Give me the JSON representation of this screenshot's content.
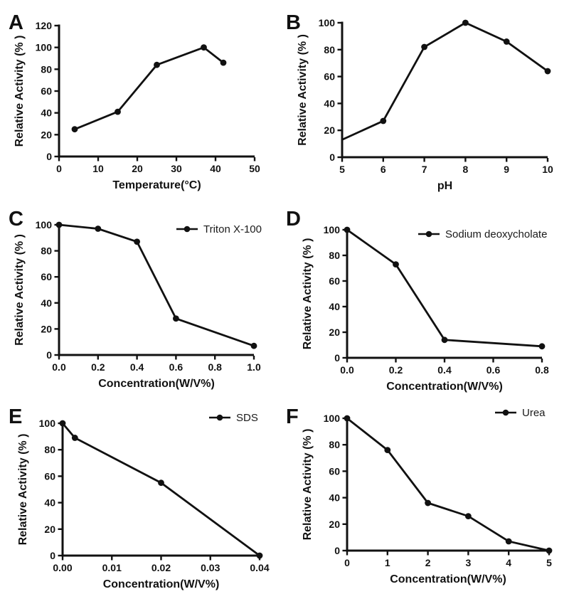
{
  "figure": {
    "background": "#ffffff",
    "line_color": "#111111"
  },
  "chart_data": [
    {
      "id": "A",
      "type": "line",
      "panel_label": "A",
      "xlabel": "Temperature(°C)",
      "ylabel": "Relative Activity (% )",
      "legend": null,
      "xlim": [
        0,
        50
      ],
      "ylim": [
        0,
        120
      ],
      "xticks": [
        0,
        10,
        20,
        30,
        40,
        50
      ],
      "xtick_labels": [
        "0",
        "10",
        "20",
        "30",
        "40",
        "50"
      ],
      "yticks": [
        0,
        20,
        40,
        60,
        80,
        100,
        120
      ],
      "ytick_labels": [
        "0",
        "20",
        "40",
        "60",
        "80",
        "100",
        "120"
      ],
      "x": [
        4,
        15,
        25,
        37,
        42
      ],
      "y": [
        25,
        41,
        84,
        100,
        86
      ],
      "marker_hidden": []
    },
    {
      "id": "B",
      "type": "line",
      "panel_label": "B",
      "xlabel": "pH",
      "ylabel": "Relative Activity (% )",
      "legend": null,
      "xlim": [
        5,
        10
      ],
      "ylim": [
        0,
        100
      ],
      "xticks": [
        5,
        6,
        7,
        8,
        9,
        10
      ],
      "xtick_labels": [
        "5",
        "6",
        "7",
        "8",
        "9",
        "10"
      ],
      "yticks": [
        0,
        20,
        40,
        60,
        80,
        100
      ],
      "ytick_labels": [
        "0",
        "20",
        "40",
        "60",
        "80",
        "100"
      ],
      "x": [
        5,
        6,
        7,
        8,
        9,
        10
      ],
      "y": [
        13,
        27,
        82,
        100,
        86,
        64
      ],
      "marker_hidden": [
        0
      ]
    },
    {
      "id": "C",
      "type": "line",
      "panel_label": "C",
      "xlabel": "Concentration(W/V%)",
      "ylabel": "Relative Activity (% )",
      "legend": "Triton X-100",
      "xlim": [
        0,
        1.0
      ],
      "ylim": [
        0,
        100
      ],
      "xticks": [
        0,
        0.2,
        0.4,
        0.6,
        0.8,
        1.0
      ],
      "xtick_labels": [
        "0.0",
        "0.2",
        "0.4",
        "0.6",
        "0.8",
        "1.0"
      ],
      "yticks": [
        0,
        20,
        40,
        60,
        80,
        100
      ],
      "ytick_labels": [
        "0",
        "20",
        "40",
        "60",
        "80",
        "100"
      ],
      "x": [
        0,
        0.2,
        0.4,
        0.6,
        1.0
      ],
      "y": [
        100,
        97,
        87,
        28,
        7
      ],
      "marker_hidden": []
    },
    {
      "id": "D",
      "type": "line",
      "panel_label": "D",
      "xlabel": "Concentration(W/V%)",
      "ylabel": "Relative Activity (% )",
      "legend": "Sodium deoxycholate",
      "xlim": [
        0,
        0.8
      ],
      "ylim": [
        0,
        100
      ],
      "xticks": [
        0,
        0.2,
        0.4,
        0.6,
        0.8
      ],
      "xtick_labels": [
        "0.0",
        "0.2",
        "0.4",
        "0.6",
        "0.8"
      ],
      "yticks": [
        0,
        20,
        40,
        60,
        80,
        100
      ],
      "ytick_labels": [
        "0",
        "20",
        "40",
        "60",
        "80",
        "100"
      ],
      "x": [
        0,
        0.2,
        0.4,
        0.8
      ],
      "y": [
        100,
        73,
        14,
        9
      ],
      "marker_hidden": []
    },
    {
      "id": "E",
      "type": "line",
      "panel_label": "E",
      "xlabel": "Concentration(W/V%)",
      "ylabel": "Relative Activity (% )",
      "legend": "SDS",
      "xlim": [
        0,
        0.04
      ],
      "ylim": [
        0,
        100
      ],
      "xticks": [
        0,
        0.01,
        0.02,
        0.03,
        0.04
      ],
      "xtick_labels": [
        "0.00",
        "0.01",
        "0.02",
        "0.03",
        "0.04"
      ],
      "yticks": [
        0,
        20,
        40,
        60,
        80,
        100
      ],
      "ytick_labels": [
        "0",
        "20",
        "40",
        "60",
        "80",
        "100"
      ],
      "x": [
        0,
        0.0025,
        0.02,
        0.04
      ],
      "y": [
        100,
        89,
        55,
        0
      ],
      "marker_hidden": []
    },
    {
      "id": "F",
      "type": "line",
      "panel_label": "F",
      "xlabel": "Concentration(W/V%)",
      "ylabel": "Relative Activity (% )",
      "legend": "Urea",
      "xlim": [
        0,
        5
      ],
      "ylim": [
        0,
        100
      ],
      "xticks": [
        0,
        1,
        2,
        3,
        4,
        5
      ],
      "xtick_labels": [
        "0",
        "1",
        "2",
        "3",
        "4",
        "5"
      ],
      "yticks": [
        0,
        20,
        40,
        60,
        80,
        100
      ],
      "ytick_labels": [
        "0",
        "20",
        "40",
        "60",
        "80",
        "100"
      ],
      "x": [
        0,
        1,
        2,
        3,
        4,
        5
      ],
      "y": [
        100,
        76,
        36,
        26,
        7,
        0
      ],
      "marker_hidden": []
    }
  ]
}
